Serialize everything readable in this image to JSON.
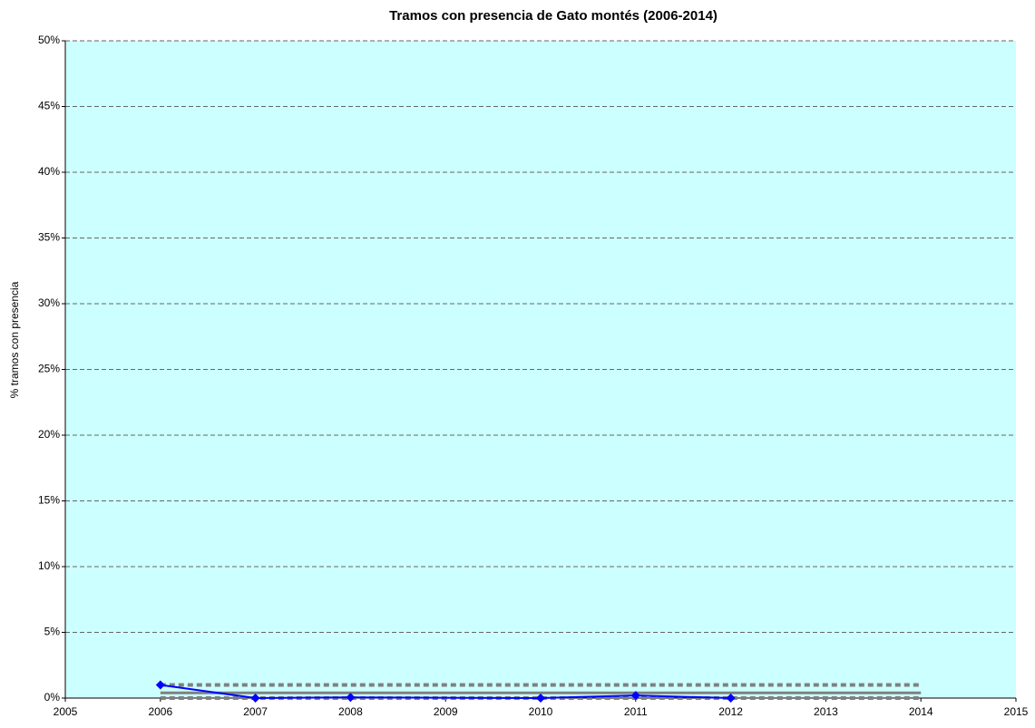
{
  "chart_data": {
    "type": "line",
    "title": "Tramos con presencia de Gato montés (2006-2014)",
    "y_label": "% tramos con presencia",
    "xlim": [
      2005,
      2015
    ],
    "xticks": [
      2005,
      2006,
      2007,
      2008,
      2009,
      2010,
      2011,
      2012,
      2013,
      2014,
      2015
    ],
    "ylim": [
      0,
      50
    ],
    "yticks": [
      {
        "value": 0,
        "label": "0%"
      },
      {
        "value": 5,
        "label": "5%"
      },
      {
        "value": 10,
        "label": "10%"
      },
      {
        "value": 15,
        "label": "15%"
      },
      {
        "value": 20,
        "label": "20%"
      },
      {
        "value": 25,
        "label": "25%"
      },
      {
        "value": 30,
        "label": "30%"
      },
      {
        "value": 35,
        "label": "35%"
      },
      {
        "value": 40,
        "label": "40%"
      },
      {
        "value": 45,
        "label": "45%"
      },
      {
        "value": 50,
        "label": "50%"
      }
    ],
    "grid": true,
    "background": "#ccffff",
    "series": [
      {
        "color": "#0000ff",
        "style": "solid",
        "markers": true,
        "x": [
          2006,
          2007,
          2008,
          2010,
          2011,
          2012
        ],
        "values": [
          1.0,
          0.0,
          0.05,
          0.0,
          0.2,
          0.0
        ]
      },
      {
        "color": "#808080",
        "style": "solid",
        "markers": false,
        "x": [
          2006,
          2014
        ],
        "values": [
          0.4,
          0.4
        ]
      },
      {
        "color": "#808080",
        "style": "dotted",
        "markers": false,
        "x": [
          2006,
          2014
        ],
        "values": [
          1.0,
          1.0
        ]
      },
      {
        "color": "#808080",
        "style": "dotted",
        "markers": false,
        "x": [
          2006,
          2014
        ],
        "values": [
          0.0,
          0.0
        ]
      }
    ]
  }
}
